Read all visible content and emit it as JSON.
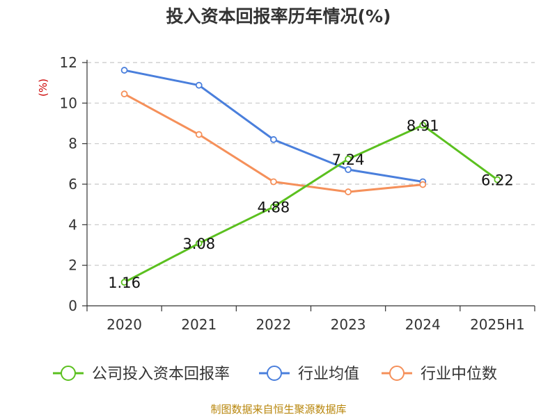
{
  "chart_data": {
    "type": "line",
    "title": "投入资本回报率历年情况(%)",
    "ylabel": "(%)",
    "xlabel": "",
    "categories": [
      "2020",
      "2021",
      "2022",
      "2023",
      "2024",
      "2025H1"
    ],
    "ylim": [
      0,
      12
    ],
    "yticks": [
      0,
      2,
      4,
      6,
      8,
      10,
      12
    ],
    "grid": true,
    "legend_position": "bottom",
    "series": [
      {
        "name": "公司投入资本回报率",
        "color": "#5bc01f",
        "values": [
          1.16,
          3.08,
          4.88,
          7.24,
          8.91,
          6.22
        ],
        "labels": [
          "1.16",
          "3.08",
          "4.88",
          "7.24",
          "8.91",
          "6.22"
        ]
      },
      {
        "name": "行业均值",
        "color": "#4a7fdc",
        "values": [
          11.62,
          10.88,
          8.2,
          6.72,
          6.12,
          null
        ]
      },
      {
        "name": "行业中位数",
        "color": "#f5905a",
        "values": [
          10.45,
          8.45,
          6.12,
          5.62,
          5.98,
          null
        ]
      }
    ]
  },
  "source": "制图数据来自恒生聚源数据库"
}
